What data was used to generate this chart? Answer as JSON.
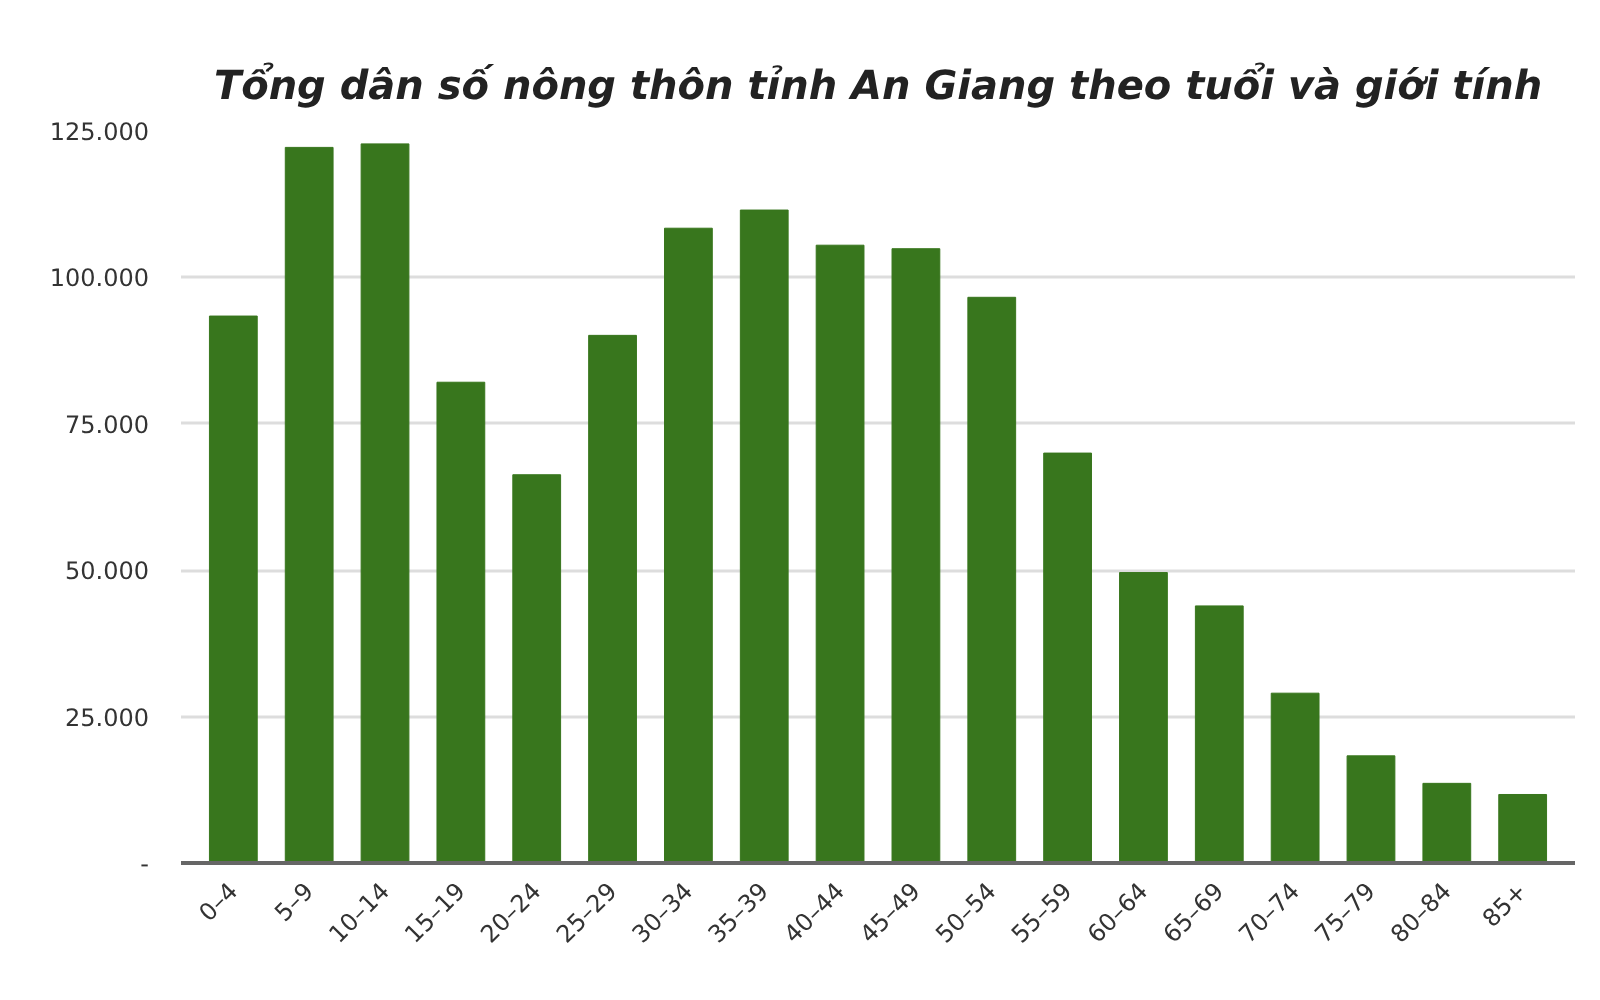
{
  "chart_data": {
    "type": "bar",
    "title": "Tổng dân số nông thôn tỉnh An Giang theo tuổi và giới tính",
    "categories": [
      "0–4",
      "5–9",
      "10–14",
      "15–19",
      "20–24",
      "25–29",
      "30–34",
      "35–39",
      "40–44",
      "45–49",
      "50–54",
      "55–59",
      "60–64",
      "65–69",
      "70–74",
      "75–79",
      "80–84",
      "85+"
    ],
    "values": [
      93400,
      122200,
      122800,
      82100,
      66300,
      90100,
      108400,
      111500,
      105500,
      104900,
      96600,
      70000,
      49600,
      43900,
      29000,
      18300,
      13600,
      11700
    ],
    "color": "#38761d",
    "ylim": [
      0,
      125000
    ],
    "yticks": [
      {
        "value": 0,
        "label": "-"
      },
      {
        "value": 25000,
        "label": "25.000"
      },
      {
        "value": 50000,
        "label": "50.000"
      },
      {
        "value": 75000,
        "label": "75.000"
      },
      {
        "value": 100000,
        "label": "100.000"
      },
      {
        "value": 125000,
        "label": "125.000"
      }
    ],
    "grid": "y"
  }
}
